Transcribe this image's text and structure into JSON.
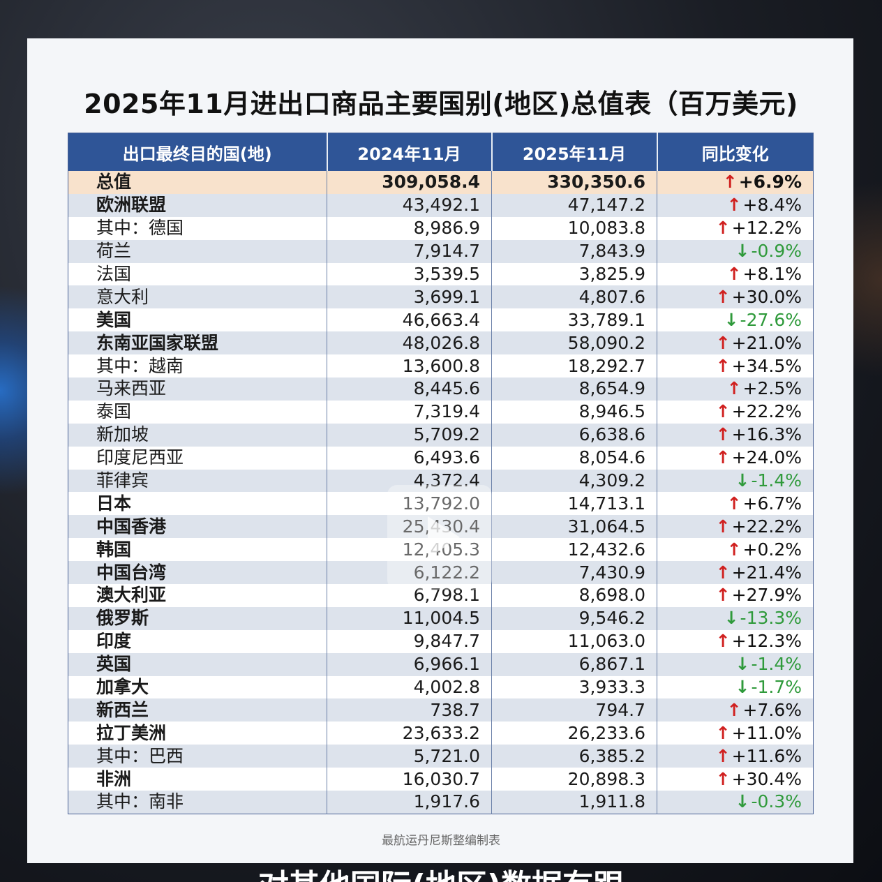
{
  "title": "2025年11月进出口商品主要国别(地区)总值表（百万美元)",
  "headers": [
    "出口最终目的国(地)",
    "2024年11月",
    "2025年11月",
    "同比变化"
  ],
  "rows": [
    {
      "name": "总值",
      "v2024": "309,058.4",
      "v2025": "330,350.6",
      "arrow": "↑",
      "change": "+6.9%",
      "dir": "up",
      "style": "total"
    },
    {
      "name": "欧洲联盟",
      "v2024": "43,492.1",
      "v2025": "47,147.2",
      "arrow": "↑",
      "change": "+8.4%",
      "dir": "up",
      "style": "bold"
    },
    {
      "name": "其中：德国",
      "v2024": "8,986.9",
      "v2025": "10,083.8",
      "arrow": "↑",
      "change": "+12.2%",
      "dir": "up",
      "style": "sub0"
    },
    {
      "name": "荷兰",
      "v2024": "7,914.7",
      "v2025": "7,843.9",
      "arrow": "↓",
      "change": "-0.9%",
      "dir": "down",
      "style": "sub2"
    },
    {
      "name": "法国",
      "v2024": "3,539.5",
      "v2025": "3,825.9",
      "arrow": "↑",
      "change": "+8.1%",
      "dir": "up",
      "style": "sub2"
    },
    {
      "name": "意大利",
      "v2024": "3,699.1",
      "v2025": "4,807.6",
      "arrow": "↑",
      "change": "+30.0%",
      "dir": "up",
      "style": "sub2"
    },
    {
      "name": "美国",
      "v2024": "46,663.4",
      "v2025": "33,789.1",
      "arrow": "↓",
      "change": "-27.6%",
      "dir": "down",
      "style": "bold"
    },
    {
      "name": "东南亚国家联盟",
      "v2024": "48,026.8",
      "v2025": "58,090.2",
      "arrow": "↑",
      "change": "+21.0%",
      "dir": "up",
      "style": "bold"
    },
    {
      "name": "其中：越南",
      "v2024": "13,600.8",
      "v2025": "18,292.7",
      "arrow": "↑",
      "change": "+34.5%",
      "dir": "up",
      "style": "sub0"
    },
    {
      "name": "马来西亚",
      "v2024": "8,445.6",
      "v2025": "8,654.9",
      "arrow": "↑",
      "change": "+2.5%",
      "dir": "up",
      "style": "sub2"
    },
    {
      "name": "泰国",
      "v2024": "7,319.4",
      "v2025": "8,946.5",
      "arrow": "↑",
      "change": "+22.2%",
      "dir": "up",
      "style": "sub2"
    },
    {
      "name": "新加坡",
      "v2024": "5,709.2",
      "v2025": "6,638.6",
      "arrow": "↑",
      "change": "+16.3%",
      "dir": "up",
      "style": "sub2"
    },
    {
      "name": "印度尼西亚",
      "v2024": "6,493.6",
      "v2025": "8,054.6",
      "arrow": "↑",
      "change": "+24.0%",
      "dir": "up",
      "style": "sub2"
    },
    {
      "name": "菲律宾",
      "v2024": "4,372.4",
      "v2025": "4,309.2",
      "arrow": "↓",
      "change": "-1.4%",
      "dir": "down",
      "style": "sub2"
    },
    {
      "name": "日本",
      "v2024": "13,792.0",
      "v2025": "14,713.1",
      "arrow": "↑",
      "change": "+6.7%",
      "dir": "up",
      "style": "bold"
    },
    {
      "name": "中国香港",
      "v2024": "25,430.4",
      "v2025": "31,064.5",
      "arrow": "↑",
      "change": "+22.2%",
      "dir": "up",
      "style": "bold"
    },
    {
      "name": "韩国",
      "v2024": "12,405.3",
      "v2025": "12,432.6",
      "arrow": "↑",
      "change": "+0.2%",
      "dir": "up",
      "style": "bold"
    },
    {
      "name": "中国台湾",
      "v2024": "6,122.2",
      "v2025": "7,430.9",
      "arrow": "↑",
      "change": "+21.4%",
      "dir": "up",
      "style": "bold"
    },
    {
      "name": "澳大利亚",
      "v2024": "6,798.1",
      "v2025": "8,698.0",
      "arrow": "↑",
      "change": "+27.9%",
      "dir": "up",
      "style": "bold"
    },
    {
      "name": "俄罗斯",
      "v2024": "11,004.5",
      "v2025": "9,546.2",
      "arrow": "↓",
      "change": "-13.3%",
      "dir": "down",
      "style": "bold"
    },
    {
      "name": "印度",
      "v2024": "9,847.7",
      "v2025": "11,063.0",
      "arrow": "↑",
      "change": "+12.3%",
      "dir": "up",
      "style": "bold"
    },
    {
      "name": "英国",
      "v2024": "6,966.1",
      "v2025": "6,867.1",
      "arrow": "↓",
      "change": "-1.4%",
      "dir": "down",
      "style": "bold"
    },
    {
      "name": "加拿大",
      "v2024": "4,002.8",
      "v2025": "3,933.3",
      "arrow": "↓",
      "change": "-1.7%",
      "dir": "down",
      "style": "bold"
    },
    {
      "name": "新西兰",
      "v2024": "738.7",
      "v2025": "794.7",
      "arrow": "↑",
      "change": "+7.6%",
      "dir": "up",
      "style": "bold"
    },
    {
      "name": "拉丁美洲",
      "v2024": "23,633.2",
      "v2025": "26,233.6",
      "arrow": "↑",
      "change": "+11.0%",
      "dir": "up",
      "style": "bold"
    },
    {
      "name": "其中：巴西",
      "v2024": "5,721.0",
      "v2025": "6,385.2",
      "arrow": "↑",
      "change": "+11.6%",
      "dir": "up",
      "style": "sub1"
    },
    {
      "name": "非洲",
      "v2024": "16,030.7",
      "v2025": "20,898.3",
      "arrow": "↑",
      "change": "+30.4%",
      "dir": "up",
      "style": "bold"
    },
    {
      "name": "其中：南非",
      "v2024": "1,917.6",
      "v2025": "1,911.8",
      "arrow": "↓",
      "change": "-0.3%",
      "dir": "down",
      "style": "sub1"
    }
  ],
  "source": "最航运丹尼斯整编制表",
  "caption": "对其他国际(地区)数据有跟",
  "colors": {
    "header": "#2f5597",
    "total_row": "#f8e2cc",
    "up_arrow": "#d0201f",
    "down": "#2f9a3b",
    "stripe": "#dde3ec"
  }
}
